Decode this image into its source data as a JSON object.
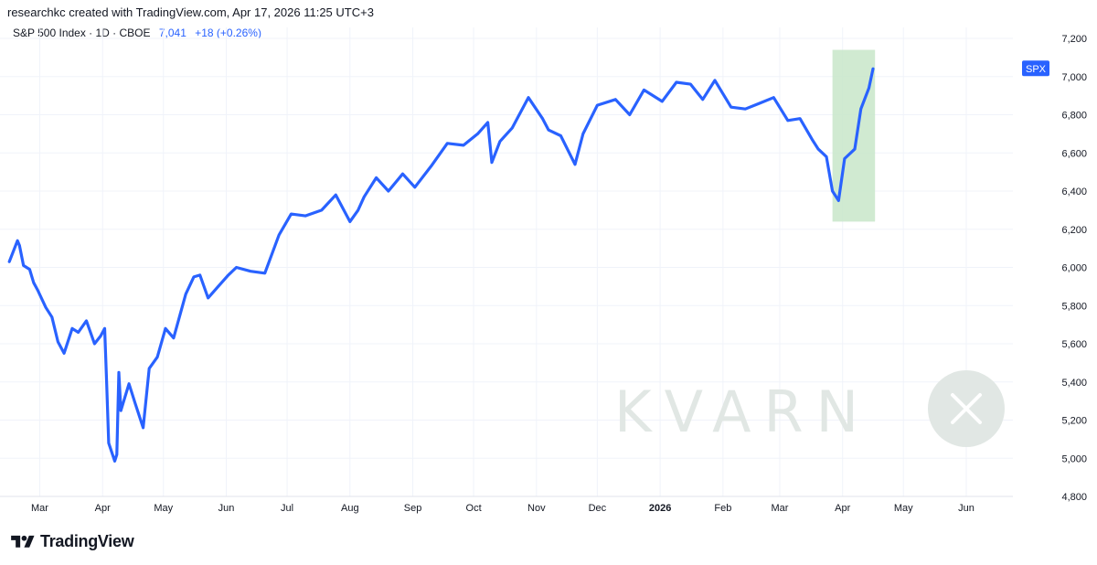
{
  "header": {
    "text": "researchkc created with TradingView.com, Apr 17, 2026 11:25 UTC+3"
  },
  "legend": {
    "symbol": "S&P 500 Index · 1D · CBOE",
    "price": "7,041",
    "change": "+18 (+0.26%)"
  },
  "price_tag": {
    "label": "SPX"
  },
  "watermark": {
    "text": "KVARN"
  },
  "footer": {
    "brand": "TradingView"
  },
  "colors": {
    "line": "#2962ff",
    "highlight": "#c8e6c9",
    "grid": "#f0f3fa",
    "tag": "#2962ff"
  },
  "chart_data": {
    "type": "line",
    "series": [
      {
        "name": "SPX",
        "x": [
          "2025-02-14",
          "2025-02-18",
          "2025-02-19",
          "2025-02-21",
          "2025-02-24",
          "2025-02-26",
          "2025-02-28",
          "2025-03-04",
          "2025-03-07",
          "2025-03-10",
          "2025-03-13",
          "2025-03-17",
          "2025-03-20",
          "2025-03-24",
          "2025-03-28",
          "2025-03-31",
          "2025-04-02",
          "2025-04-03",
          "2025-04-04",
          "2025-04-07",
          "2025-04-08",
          "2025-04-09",
          "2025-04-10",
          "2025-04-14",
          "2025-04-17",
          "2025-04-21",
          "2025-04-24",
          "2025-04-28",
          "2025-05-02",
          "2025-05-06",
          "2025-05-12",
          "2025-05-16",
          "2025-05-19",
          "2025-05-23",
          "2025-05-28",
          "2025-06-02",
          "2025-06-06",
          "2025-06-13",
          "2025-06-20",
          "2025-06-27",
          "2025-07-03",
          "2025-07-10",
          "2025-07-18",
          "2025-07-25",
          "2025-08-01",
          "2025-08-05",
          "2025-08-08",
          "2025-08-14",
          "2025-08-20",
          "2025-08-27",
          "2025-09-02",
          "2025-09-10",
          "2025-09-18",
          "2025-09-26",
          "2025-10-03",
          "2025-10-08",
          "2025-10-10",
          "2025-10-14",
          "2025-10-20",
          "2025-10-28",
          "2025-11-04",
          "2025-11-07",
          "2025-11-13",
          "2025-11-20",
          "2025-11-24",
          "2025-12-01",
          "2025-12-10",
          "2025-12-17",
          "2025-12-24",
          "2026-01-02",
          "2026-01-09",
          "2026-01-16",
          "2026-01-22",
          "2026-01-28",
          "2026-02-05",
          "2026-02-12",
          "2026-02-19",
          "2026-02-26",
          "2026-03-05",
          "2026-03-11",
          "2026-03-17",
          "2026-03-20",
          "2026-03-24",
          "2026-03-27",
          "2026-03-30",
          "2026-04-02",
          "2026-04-07",
          "2026-04-10",
          "2026-04-14",
          "2026-04-16"
        ],
        "y": [
          6030,
          6140,
          6115,
          6010,
          5990,
          5920,
          5880,
          5790,
          5740,
          5610,
          5550,
          5680,
          5660,
          5720,
          5600,
          5640,
          5680,
          5390,
          5080,
          4985,
          5020,
          5450,
          5250,
          5390,
          5290,
          5160,
          5470,
          5530,
          5680,
          5630,
          5860,
          5950,
          5960,
          5840,
          5900,
          5960,
          6000,
          5980,
          5970,
          6170,
          6280,
          6270,
          6300,
          6380,
          6240,
          6300,
          6370,
          6470,
          6400,
          6490,
          6420,
          6530,
          6650,
          6640,
          6700,
          6760,
          6550,
          6660,
          6730,
          6890,
          6780,
          6720,
          6690,
          6540,
          6700,
          6850,
          6880,
          6800,
          6930,
          6870,
          6970,
          6960,
          6880,
          6980,
          6840,
          6830,
          6860,
          6890,
          6770,
          6780,
          6670,
          6620,
          6580,
          6400,
          6350,
          6570,
          6620,
          6830,
          6940,
          7041
        ]
      }
    ],
    "xlabel": "",
    "ylabel": "",
    "xticks": [
      "Mar",
      "Apr",
      "May",
      "Jun",
      "Jul",
      "Aug",
      "Sep",
      "Oct",
      "Nov",
      "Dec",
      "2026",
      "Feb",
      "Mar",
      "Apr",
      "May",
      "Jun"
    ],
    "yticks": [
      "4,800",
      "5,000",
      "5,200",
      "5,400",
      "5,600",
      "5,800",
      "6,000",
      "6,200",
      "6,400",
      "6,600",
      "6,800",
      "7,000",
      "7,200"
    ],
    "ylim": [
      4800,
      7200
    ],
    "highlight": {
      "x_start": "2026-03-27",
      "x_end": "2026-04-17",
      "y_low": 6240,
      "y_high": 7140
    },
    "last_value": 7041
  }
}
